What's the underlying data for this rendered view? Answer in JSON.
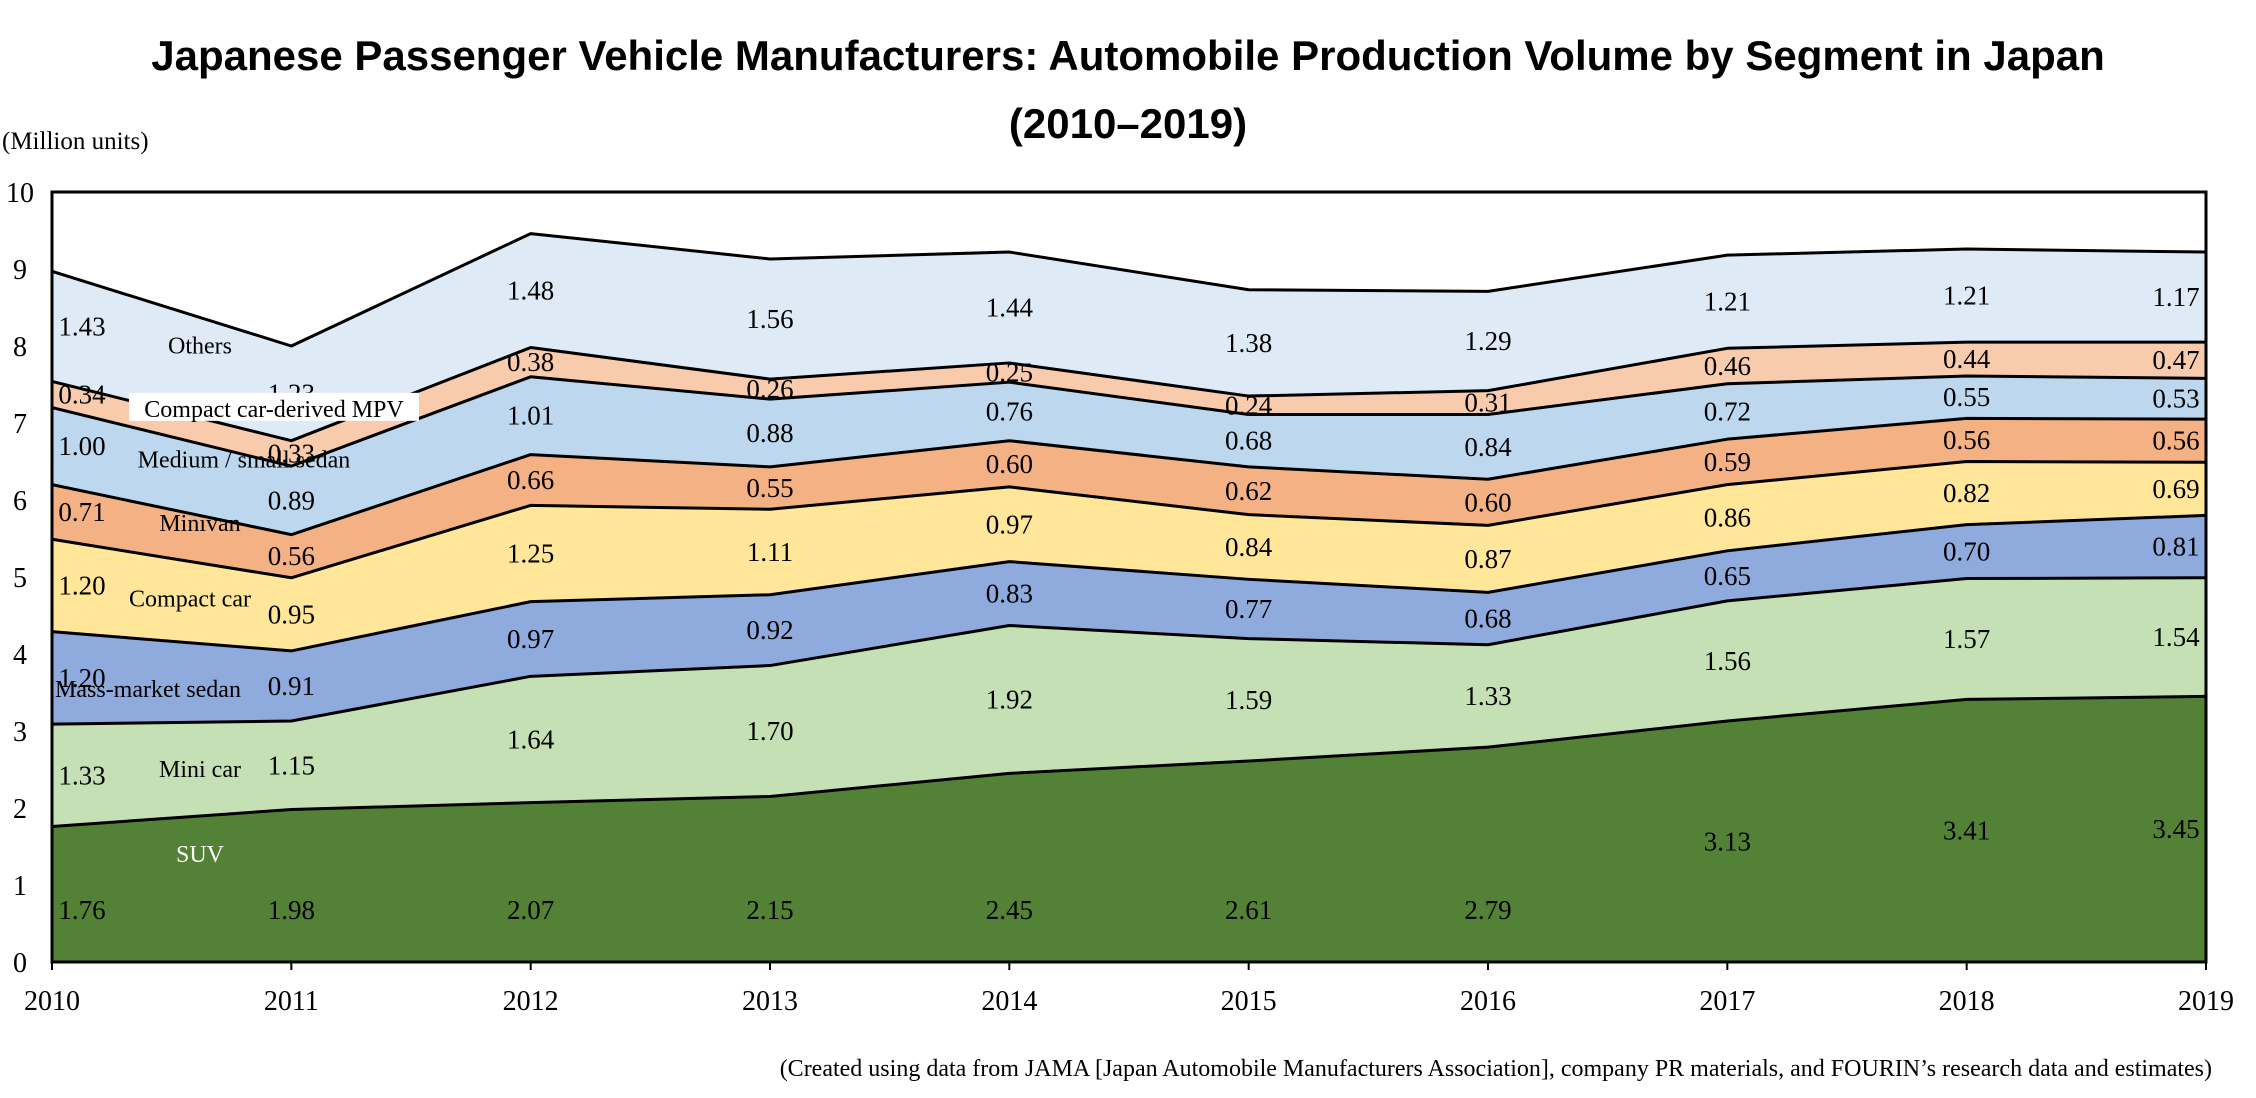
{
  "chart_data": {
    "type": "area",
    "stacked": true,
    "title_line1": "Japanese Passenger Vehicle Manufacturers: Automobile Production Volume by Segment in Japan",
    "title_line2": "(2010–2019)",
    "ylabel": "(Million units)",
    "xlabel": "",
    "ylim": [
      0,
      10
    ],
    "yticks": [
      "0",
      "1",
      "2",
      "3",
      "4",
      "5",
      "6",
      "7",
      "8",
      "9",
      "10"
    ],
    "categories": [
      "2010",
      "2011",
      "2012",
      "2013",
      "2014",
      "2015",
      "2016",
      "2017",
      "2018",
      "2019"
    ],
    "series": [
      {
        "name": "SUV",
        "color": "#538135",
        "values": [
          1.76,
          1.98,
          2.07,
          2.15,
          2.45,
          2.61,
          2.79,
          3.13,
          3.41,
          3.45
        ],
        "labels": [
          "1.76",
          "1.98",
          "2.07",
          "2.15",
          "2.45",
          "2.61",
          "2.79",
          "3.13",
          "3.41",
          "3.45"
        ]
      },
      {
        "name": "Mini car",
        "color": "#c5e0b4",
        "values": [
          1.33,
          1.15,
          1.64,
          1.7,
          1.92,
          1.59,
          1.33,
          1.56,
          1.57,
          1.54
        ],
        "labels": [
          "1.33",
          "1.15",
          "1.64",
          "1.70",
          "1.92",
          "1.59",
          "1.33",
          "1.56",
          "1.57",
          "1.54"
        ]
      },
      {
        "name": "Mass-market sedan",
        "color": "#8faadc",
        "values": [
          1.2,
          0.91,
          0.97,
          0.92,
          0.83,
          0.77,
          0.68,
          0.65,
          0.7,
          0.81
        ],
        "labels": [
          "1.20",
          "0.91",
          "0.97",
          "0.92",
          "0.83",
          "0.77",
          "0.68",
          "0.65",
          "0.70",
          "0.81"
        ]
      },
      {
        "name": "Compact car",
        "color": "#ffe699",
        "values": [
          1.2,
          0.95,
          1.25,
          1.11,
          0.97,
          0.84,
          0.87,
          0.86,
          0.82,
          0.69
        ],
        "labels": [
          "1.20",
          "0.95",
          "1.25",
          "1.11",
          "0.97",
          "0.84",
          "0.87",
          "0.86",
          "0.82",
          "0.69"
        ]
      },
      {
        "name": "Minivan",
        "color": "#f4b183",
        "values": [
          0.71,
          0.56,
          0.66,
          0.55,
          0.6,
          0.62,
          0.6,
          0.59,
          0.56,
          0.56
        ],
        "labels": [
          "0.71",
          "0.56",
          "0.66",
          "0.55",
          "0.60",
          "0.62",
          "0.60",
          "0.59",
          "0.56",
          "0.56"
        ]
      },
      {
        "name": "Medium / small sedan",
        "color": "#bdd7ee",
        "values": [
          1.0,
          0.89,
          1.01,
          0.88,
          0.76,
          0.68,
          0.84,
          0.72,
          0.55,
          0.53
        ],
        "labels": [
          "1.00",
          "0.89",
          "1.01",
          "0.88",
          "0.76",
          "0.68",
          "0.84",
          "0.72",
          "0.55",
          "0.53"
        ]
      },
      {
        "name": "Compact car-derived MPV",
        "color": "#f8cbad",
        "values": [
          0.34,
          0.33,
          0.38,
          0.26,
          0.25,
          0.24,
          0.31,
          0.46,
          0.44,
          0.47
        ],
        "labels": [
          "0.34",
          "0.33",
          "0.38",
          "0.26",
          "0.25",
          "0.24",
          "0.31",
          "0.46",
          "0.44",
          "0.47"
        ]
      },
      {
        "name": "Others",
        "color": "#deebf7",
        "values": [
          1.43,
          1.23,
          1.48,
          1.56,
          1.44,
          1.38,
          1.29,
          1.21,
          1.21,
          1.17
        ],
        "labels": [
          "1.43",
          "1.23",
          "1.48",
          "1.56",
          "1.44",
          "1.38",
          "1.29",
          "1.21",
          "1.21",
          "1.17"
        ]
      }
    ],
    "grid": false,
    "legend": "inline labels on areas (left side)",
    "source": "(Created using data from JAMA [Japan Automobile Manufacturers Association], company PR materials, and FOURIN’s research data and estimates)"
  }
}
